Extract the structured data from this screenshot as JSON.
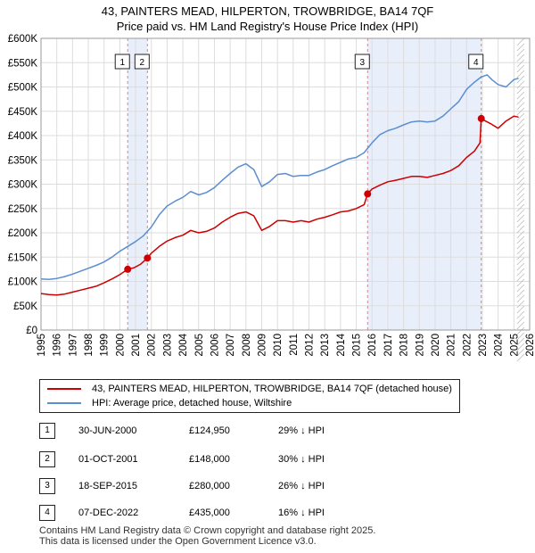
{
  "chart_data": {
    "type": "line",
    "title": "43, PAINTERS MEAD, HILPERTON, TROWBRIDGE, BA14 7QF",
    "subtitle": "Price paid vs. HM Land Registry's House Price Index (HPI)",
    "xlim": [
      1995,
      2026
    ],
    "ylim": [
      0,
      600000
    ],
    "x_ticks": [
      1995,
      1996,
      1997,
      1998,
      1999,
      2000,
      2001,
      2002,
      2003,
      2004,
      2005,
      2006,
      2007,
      2008,
      2009,
      2010,
      2011,
      2012,
      2013,
      2014,
      2015,
      2016,
      2017,
      2018,
      2019,
      2020,
      2021,
      2022,
      2023,
      2024,
      2025,
      2026
    ],
    "y_ticks": [
      0,
      50000,
      100000,
      150000,
      200000,
      250000,
      300000,
      350000,
      400000,
      450000,
      500000,
      550000,
      600000
    ],
    "y_tick_labels": [
      "£0",
      "£50K",
      "£100K",
      "£150K",
      "£200K",
      "£250K",
      "£300K",
      "£350K",
      "£400K",
      "£450K",
      "£500K",
      "£550K",
      "£600K"
    ],
    "grid": true,
    "shaded_ranges": [
      [
        2000.5,
        2001.75
      ],
      [
        2015.72,
        2022.93
      ]
    ],
    "forecast_start": 2025.2,
    "series": [
      {
        "name": "43, PAINTERS MEAD, HILPERTON, TROWBRIDGE, BA14 7QF (detached house)",
        "color": "#cc0000",
        "x": [
          1995.0,
          1995.5,
          1996.0,
          1996.5,
          1997.0,
          1997.5,
          1998.0,
          1998.5,
          1999.0,
          1999.5,
          2000.0,
          2000.5,
          2000.9,
          2001.3,
          2001.75,
          2002.0,
          2002.5,
          2003.0,
          2003.5,
          2004.0,
          2004.5,
          2005.0,
          2005.5,
          2006.0,
          2006.5,
          2007.0,
          2007.5,
          2008.0,
          2008.5,
          2009.0,
          2009.5,
          2010.0,
          2010.5,
          2011.0,
          2011.5,
          2012.0,
          2012.5,
          2013.0,
          2013.5,
          2014.0,
          2014.5,
          2015.0,
          2015.5,
          2015.72,
          2016.0,
          2016.5,
          2017.0,
          2017.5,
          2018.0,
          2018.5,
          2019.0,
          2019.5,
          2020.0,
          2020.5,
          2021.0,
          2021.5,
          2022.0,
          2022.5,
          2022.85,
          2022.93,
          2023.2,
          2023.5,
          2024.0,
          2024.5,
          2025.0,
          2025.3
        ],
        "values": [
          75000,
          73000,
          72000,
          74000,
          78000,
          82000,
          86000,
          90000,
          97000,
          105000,
          114000,
          124950,
          128000,
          135000,
          148000,
          158000,
          172000,
          183000,
          190000,
          195000,
          205000,
          200000,
          203000,
          210000,
          222000,
          232000,
          240000,
          243000,
          235000,
          205000,
          213000,
          225000,
          225000,
          222000,
          225000,
          222000,
          228000,
          232000,
          237000,
          243000,
          245000,
          250000,
          258000,
          280000,
          290000,
          298000,
          305000,
          308000,
          312000,
          316000,
          316000,
          314000,
          318000,
          322000,
          328000,
          338000,
          355000,
          368000,
          385000,
          435000,
          430000,
          425000,
          415000,
          430000,
          440000,
          438000
        ]
      },
      {
        "name": "HPI: Average price, detached house, Wiltshire",
        "color": "#5b8ed1",
        "x": [
          1995.0,
          1995.5,
          1996.0,
          1996.5,
          1997.0,
          1997.5,
          1998.0,
          1998.5,
          1999.0,
          1999.5,
          2000.0,
          2000.5,
          2001.0,
          2001.5,
          2002.0,
          2002.5,
          2003.0,
          2003.5,
          2004.0,
          2004.5,
          2005.0,
          2005.5,
          2006.0,
          2006.5,
          2007.0,
          2007.5,
          2008.0,
          2008.5,
          2009.0,
          2009.5,
          2010.0,
          2010.5,
          2011.0,
          2011.5,
          2012.0,
          2012.5,
          2013.0,
          2013.5,
          2014.0,
          2014.5,
          2015.0,
          2015.5,
          2016.0,
          2016.5,
          2017.0,
          2017.5,
          2018.0,
          2018.5,
          2019.0,
          2019.5,
          2020.0,
          2020.5,
          2021.0,
          2021.5,
          2022.0,
          2022.5,
          2022.9,
          2023.3,
          2023.6,
          2024.0,
          2024.5,
          2025.0,
          2025.3
        ],
        "values": [
          105000,
          104000,
          106000,
          110000,
          115000,
          121000,
          127000,
          133000,
          140000,
          150000,
          162000,
          172000,
          182000,
          194000,
          212000,
          237000,
          255000,
          265000,
          273000,
          285000,
          278000,
          283000,
          293000,
          308000,
          322000,
          335000,
          342000,
          330000,
          295000,
          305000,
          320000,
          322000,
          316000,
          318000,
          318000,
          325000,
          330000,
          338000,
          345000,
          352000,
          355000,
          365000,
          385000,
          402000,
          410000,
          415000,
          422000,
          428000,
          430000,
          428000,
          430000,
          440000,
          455000,
          470000,
          495000,
          510000,
          520000,
          525000,
          515000,
          505000,
          500000,
          515000,
          518000
        ]
      }
    ],
    "transactions": [
      {
        "label": "1",
        "x": 2000.5,
        "value": 124950
      },
      {
        "label": "2",
        "x": 2001.75,
        "value": 148000
      },
      {
        "label": "3",
        "x": 2015.72,
        "value": 280000
      },
      {
        "label": "4",
        "x": 2022.93,
        "value": 435000
      }
    ]
  },
  "legend": {
    "property_label": "43, PAINTERS MEAD, HILPERTON, TROWBRIDGE, BA14 7QF (detached house)",
    "hpi_label": "HPI: Average price, detached house, Wiltshire"
  },
  "table": [
    {
      "num": "1",
      "date": "30-JUN-2000",
      "price": "£124,950",
      "hpi": "29% ↓ HPI"
    },
    {
      "num": "2",
      "date": "01-OCT-2001",
      "price": "£148,000",
      "hpi": "30% ↓ HPI"
    },
    {
      "num": "3",
      "date": "18-SEP-2015",
      "price": "£280,000",
      "hpi": "26% ↓ HPI"
    },
    {
      "num": "4",
      "date": "07-DEC-2022",
      "price": "£435,000",
      "hpi": "16% ↓ HPI"
    }
  ],
  "footer": {
    "line1": "Contains HM Land Registry data © Crown copyright and database right 2025.",
    "line2": "This data is licensed under the Open Government Licence v3.0."
  },
  "colors": {
    "property": "#cc0000",
    "hpi": "#5b8ed1",
    "shade": "#e8eefa",
    "grid": "#dddddd",
    "marker_line": "#e08080"
  }
}
